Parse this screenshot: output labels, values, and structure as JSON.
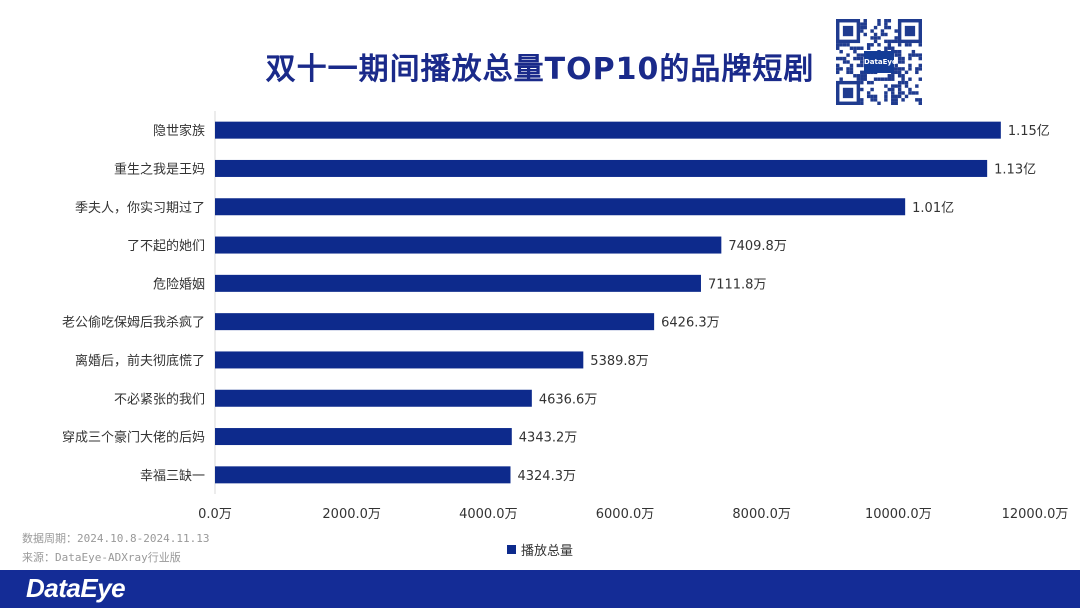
{
  "title": "双十一期间播放总量TOP10的品牌短剧",
  "qr_logo_text": "DataEye",
  "footer": {
    "period": "数据周期：2024.10.8-2024.11.13",
    "source": "来源：DataEye-ADXray行业版",
    "logo": "DataEye"
  },
  "colors": {
    "bar": "#0d2a8c",
    "footer": "#142c96",
    "title": "#1a2a8a"
  },
  "chart_data": {
    "type": "bar",
    "orientation": "horizontal",
    "title": "双十一期间播放总量TOP10的品牌短剧",
    "categories": [
      "隐世家族",
      "重生之我是王妈",
      "季夫人，你实习期过了",
      "了不起的她们",
      "危险婚姻",
      "老公偷吃保姆后我杀疯了",
      "离婚后，前夫彻底慌了",
      "不必紧张的我们",
      "穿成三个豪门大佬的后妈",
      "幸福三缺一"
    ],
    "series": [
      {
        "name": "播放总量",
        "values": [
          11500,
          11300,
          10100,
          7409.8,
          7111.8,
          6426.3,
          5389.8,
          4636.6,
          4343.2,
          4324.3
        ],
        "labels": [
          "1.15亿",
          "1.13亿",
          "1.01亿",
          "7409.8万",
          "7111.8万",
          "6426.3万",
          "5389.8万",
          "4636.6万",
          "4343.2万",
          "4324.3万"
        ]
      }
    ],
    "xlim": [
      0,
      12000
    ],
    "xticks": [
      0,
      2000,
      4000,
      6000,
      8000,
      10000,
      12000
    ],
    "xtick_labels": [
      "0.0万",
      "2000.0万",
      "4000.0万",
      "6000.0万",
      "8000.0万",
      "10000.0万",
      "12000.0万"
    ],
    "unit": "万",
    "legend_position": "bottom",
    "grid": false
  }
}
